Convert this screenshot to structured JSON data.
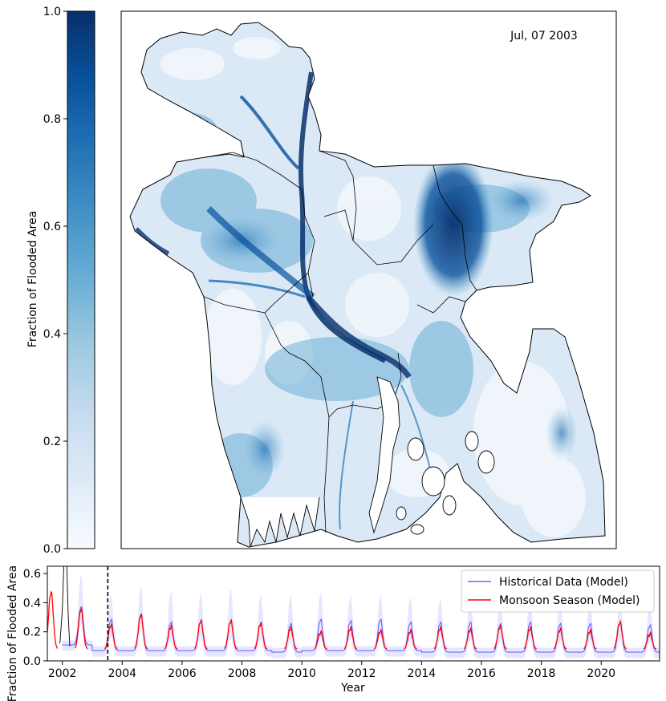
{
  "colorbar": {
    "label": "Fraction of Flooded Area",
    "ticks": [
      "0.0",
      "0.2",
      "0.4",
      "0.6",
      "0.8",
      "1.0"
    ],
    "tick_values": [
      0.0,
      0.2,
      0.4,
      0.6,
      0.8,
      1.0
    ],
    "range": [
      0,
      1
    ],
    "colormap": "Blues",
    "color_low": "#f7fbff",
    "color_high": "#08306b"
  },
  "map": {
    "date_label": "Jul, 07 2003"
  },
  "chart_data": {
    "type": "line",
    "xlabel": "Year",
    "ylabel": "Fraction of Flooded Area",
    "xlim": [
      2001.5,
      2021.95
    ],
    "ylim": [
      0.0,
      0.65
    ],
    "x_tick_labels": [
      "2002",
      "2004",
      "2006",
      "2008",
      "2010",
      "2012",
      "2014",
      "2016",
      "2018",
      "2020"
    ],
    "x_ticks": [
      2002,
      2004,
      2006,
      2008,
      2010,
      2012,
      2014,
      2016,
      2018,
      2020
    ],
    "y_tick_labels": [
      "0.0",
      "0.2",
      "0.4",
      "0.6"
    ],
    "y_ticks": [
      0.0,
      0.2,
      0.4,
      0.6
    ],
    "marker_line_x": 2003.52,
    "legend_position": "upper-right",
    "series": [
      {
        "name": "Historical Data (Model)",
        "color": "#4a4aff"
      },
      {
        "name": "Monsoon Season (Model)",
        "color": "#ff0000"
      }
    ],
    "band_color": "#e6e6ff",
    "historical_peaks": [
      {
        "year": 2002,
        "peak": 0.38,
        "base": 0.11,
        "band_top": 0.6
      },
      {
        "year": 2003,
        "peak": 0.29,
        "base": 0.07,
        "band_top": 0.46
      },
      {
        "year": 2004,
        "peak": 0.33,
        "base": 0.07,
        "band_top": 0.52
      },
      {
        "year": 2005,
        "peak": 0.27,
        "base": 0.07,
        "band_top": 0.48
      },
      {
        "year": 2006,
        "peak": 0.28,
        "base": 0.07,
        "band_top": 0.47
      },
      {
        "year": 2007,
        "peak": 0.28,
        "base": 0.07,
        "band_top": 0.5
      },
      {
        "year": 2008,
        "peak": 0.27,
        "base": 0.07,
        "band_top": 0.46
      },
      {
        "year": 2009,
        "peak": 0.26,
        "base": 0.06,
        "band_top": 0.45
      },
      {
        "year": 2010,
        "peak": 0.29,
        "base": 0.07,
        "band_top": 0.47
      },
      {
        "year": 2011,
        "peak": 0.28,
        "base": 0.07,
        "band_top": 0.45
      },
      {
        "year": 2012,
        "peak": 0.29,
        "base": 0.07,
        "band_top": 0.46
      },
      {
        "year": 2013,
        "peak": 0.27,
        "base": 0.07,
        "band_top": 0.44
      },
      {
        "year": 2014,
        "peak": 0.27,
        "base": 0.06,
        "band_top": 0.43
      },
      {
        "year": 2015,
        "peak": 0.27,
        "base": 0.06,
        "band_top": 0.44
      },
      {
        "year": 2016,
        "peak": 0.26,
        "base": 0.06,
        "band_top": 0.43
      },
      {
        "year": 2017,
        "peak": 0.27,
        "base": 0.06,
        "band_top": 0.45
      },
      {
        "year": 2018,
        "peak": 0.26,
        "base": 0.06,
        "band_top": 0.42
      },
      {
        "year": 2019,
        "peak": 0.26,
        "base": 0.06,
        "band_top": 0.42
      },
      {
        "year": 2020,
        "peak": 0.27,
        "base": 0.06,
        "band_top": 0.43
      },
      {
        "year": 2021,
        "peak": 0.25,
        "base": 0.06,
        "band_top": 0.4
      }
    ],
    "monsoon_peaks": [
      {
        "year": 2001,
        "peak": 0.48
      },
      {
        "year": 2002,
        "peak": 0.36
      },
      {
        "year": 2003,
        "peak": 0.25
      },
      {
        "year": 2004,
        "peak": 0.32
      },
      {
        "year": 2005,
        "peak": 0.24
      },
      {
        "year": 2006,
        "peak": 0.28
      },
      {
        "year": 2007,
        "peak": 0.28
      },
      {
        "year": 2008,
        "peak": 0.26
      },
      {
        "year": 2009,
        "peak": 0.23
      },
      {
        "year": 2010,
        "peak": 0.2
      },
      {
        "year": 2011,
        "peak": 0.23
      },
      {
        "year": 2012,
        "peak": 0.21
      },
      {
        "year": 2013,
        "peak": 0.21
      },
      {
        "year": 2014,
        "peak": 0.23
      },
      {
        "year": 2015,
        "peak": 0.22
      },
      {
        "year": 2016,
        "peak": 0.24
      },
      {
        "year": 2017,
        "peak": 0.23
      },
      {
        "year": 2018,
        "peak": 0.22
      },
      {
        "year": 2019,
        "peak": 0.21
      },
      {
        "year": 2020,
        "peak": 0.27
      },
      {
        "year": 2021,
        "peak": 0.19
      }
    ],
    "initial_spike": [
      {
        "x": 2001.92,
        "y": 0.12
      },
      {
        "x": 2002.0,
        "y": 0.35
      },
      {
        "x": 2002.05,
        "y": 0.65
      },
      {
        "x": 2002.15,
        "y": 0.65
      },
      {
        "x": 2002.2,
        "y": 0.3
      },
      {
        "x": 2002.25,
        "y": 0.1
      }
    ]
  }
}
